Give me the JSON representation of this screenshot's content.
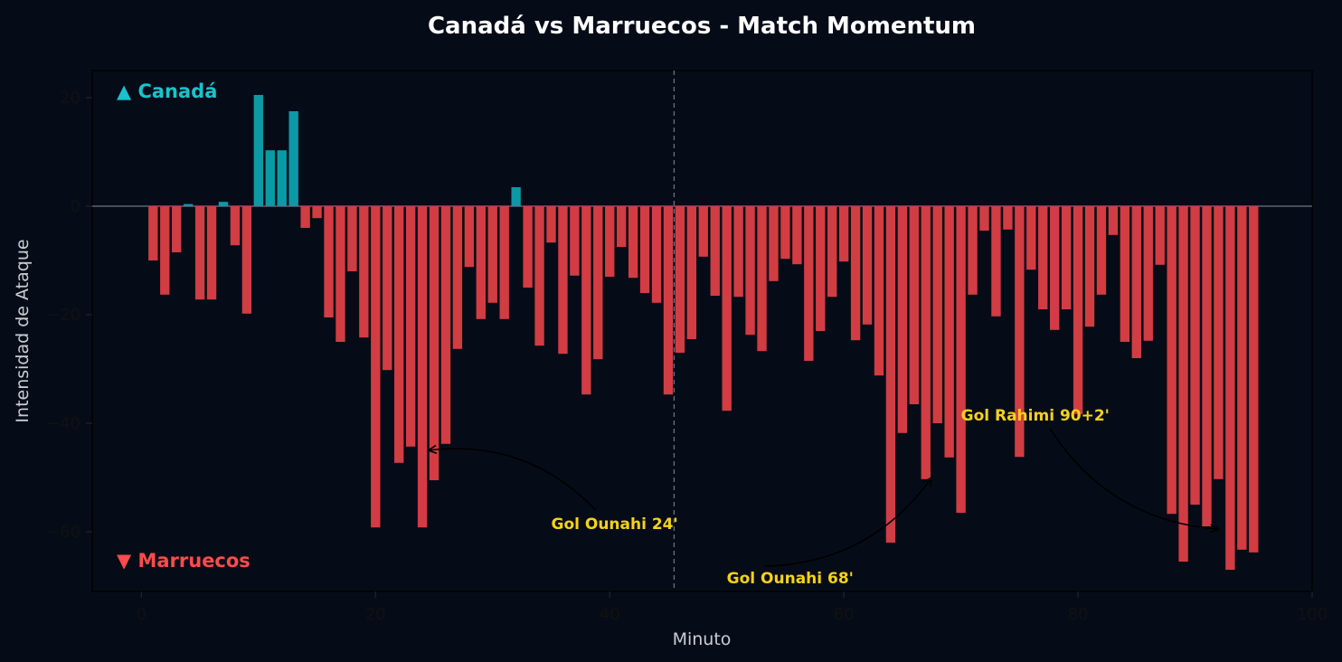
{
  "colors": {
    "background": "#060c17",
    "positive": "#0a9aa6",
    "negative": "#d23c43",
    "canada_label": "#19c2cc",
    "morocco_label": "#ff4b4b",
    "annotation": "#f7d21a"
  },
  "chart_data": {
    "type": "bar",
    "title": "Canadá vs Marruecos - Match Momentum",
    "xlabel": "Minuto",
    "ylabel": "Intensidad de Ataque",
    "xlim": [
      -4.2,
      100
    ],
    "ylim": [
      -71,
      25
    ],
    "xticks": [
      0,
      20,
      40,
      60,
      80,
      100
    ],
    "yticks": [
      20,
      0,
      -20,
      -40,
      -60
    ],
    "ytick_labels": [
      "20",
      "0",
      "−20",
      "−40",
      "−60"
    ],
    "grid": false,
    "halftime_minute": 45.5,
    "team_labels": {
      "top": "▲ Canadá",
      "bottom": "▼ Marruecos"
    },
    "x": [
      1,
      2,
      3,
      4,
      5,
      6,
      7,
      8,
      9,
      10,
      11,
      12,
      13,
      14,
      15,
      16,
      17,
      18,
      19,
      20,
      21,
      22,
      23,
      24,
      25,
      26,
      27,
      28,
      29,
      30,
      31,
      32,
      33,
      34,
      35,
      36,
      37,
      38,
      39,
      40,
      41,
      42,
      43,
      44,
      45,
      46,
      47,
      48,
      49,
      50,
      51,
      52,
      53,
      54,
      55,
      56,
      57,
      58,
      59,
      60,
      61,
      62,
      63,
      64,
      65,
      66,
      67,
      68,
      69,
      70,
      71,
      72,
      73,
      74,
      75,
      76,
      77,
      78,
      79,
      80,
      81,
      82,
      83,
      84,
      85,
      86,
      87,
      88,
      89,
      90,
      91,
      92,
      93,
      94,
      95
    ],
    "values": [
      -10,
      -16.3,
      -8.5,
      0.4,
      -17.2,
      -17.2,
      0.8,
      -7.2,
      -19.8,
      20.5,
      10.3,
      10.3,
      17.5,
      -4,
      -2.2,
      -20.5,
      -25,
      -12,
      -24.2,
      -59.2,
      -30.2,
      -47.3,
      -44.3,
      -59.2,
      -50.5,
      -43.8,
      -26.3,
      -11.2,
      -20.8,
      -17.8,
      -20.8,
      3.5,
      -15,
      -25.7,
      -6.7,
      -27.2,
      -12.8,
      -34.7,
      -28.2,
      -13,
      -7.5,
      -13.2,
      -16,
      -17.8,
      -34.7,
      -27,
      -24.5,
      -9.3,
      -16.5,
      -37.7,
      -16.7,
      -23.7,
      -26.7,
      -13.8,
      -9.7,
      -10.7,
      -28.5,
      -23,
      -16.7,
      -10.2,
      -24.7,
      -21.8,
      -31.2,
      -62,
      -41.8,
      -36.5,
      -50.3,
      -40,
      -46.3,
      -56.5,
      -16.3,
      -4.5,
      -20.3,
      -4.3,
      -46.2,
      -11.7,
      -19,
      -22.8,
      -19,
      -38.3,
      -22.2,
      -16.3,
      -5.3,
      -25,
      -28,
      -24.8,
      -10.8,
      -56.7,
      -65.5,
      -55,
      -59,
      -50.3,
      -67,
      -63.3,
      -63.8
    ],
    "annotations": [
      {
        "text": "Gol Ounahi 24'",
        "text_x": 35,
        "text_y": -59.5,
        "arrow_x": 24.5,
        "arrow_y": -45
      },
      {
        "text": "Gol Ounahi 68'",
        "text_x": 50,
        "text_y": -69.5,
        "arrow_x": 67.5,
        "arrow_y": -50
      },
      {
        "text": "Gol Rahimi 90+2'",
        "text_x": 70,
        "text_y": -39.5,
        "arrow_x": 92,
        "arrow_y": -59.5
      }
    ]
  }
}
